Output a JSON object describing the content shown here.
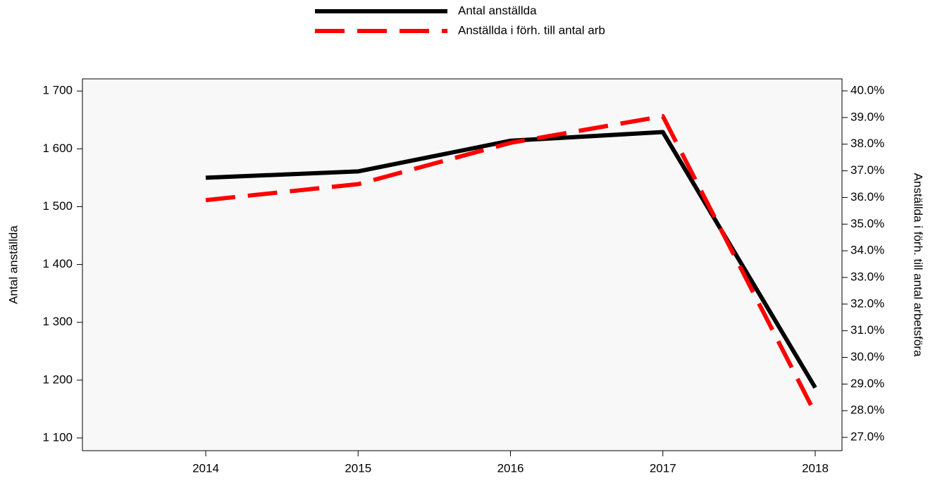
{
  "chart_data": {
    "type": "line",
    "categories": [
      "2014",
      "2015",
      "2016",
      "2017",
      "2018"
    ],
    "series": [
      {
        "name": "Antal anställda",
        "color": "#000000",
        "values": [
          1550,
          1561,
          1614,
          1629,
          1187
        ]
      },
      {
        "name": "Anställda i förh. till antal arb",
        "color": "#ff0000",
        "axis": "y2",
        "values": [
          35.9,
          36.5,
          38.05,
          39.05,
          27.9
        ]
      }
    ],
    "y_label": "Antal anställda",
    "y2_label": "Anställda i förh. till antal arbetsföra",
    "ylim": [
      1078,
      1721
    ],
    "yticks": [
      {
        "value": 1100,
        "label": "1 100"
      },
      {
        "value": 1200,
        "label": "1 200"
      },
      {
        "value": 1300,
        "label": "1 300"
      },
      {
        "value": 1400,
        "label": "1 400"
      },
      {
        "value": 1500,
        "label": "1 500"
      },
      {
        "value": 1600,
        "label": "1 600"
      },
      {
        "value": 1700,
        "label": "1 700"
      }
    ],
    "y2lim": [
      26.5,
      40.45
    ],
    "y2ticks": [
      {
        "value": 27,
        "label": "27.0%"
      },
      {
        "value": 28,
        "label": "28.0%"
      },
      {
        "value": 29,
        "label": "29.0%"
      },
      {
        "value": 30,
        "label": "30.0%"
      },
      {
        "value": 31,
        "label": "31.0%"
      },
      {
        "value": 32,
        "label": "32.0%"
      },
      {
        "value": 33,
        "label": "33.0%"
      },
      {
        "value": 34,
        "label": "34.0%"
      },
      {
        "value": 35,
        "label": "35.0%"
      },
      {
        "value": 36,
        "label": "36.0%"
      },
      {
        "value": 37,
        "label": "37.0%"
      },
      {
        "value": 38,
        "label": "38.0%"
      },
      {
        "value": 39,
        "label": "39.0%"
      },
      {
        "value": 40,
        "label": "40.0%"
      }
    ],
    "legend": "top"
  }
}
